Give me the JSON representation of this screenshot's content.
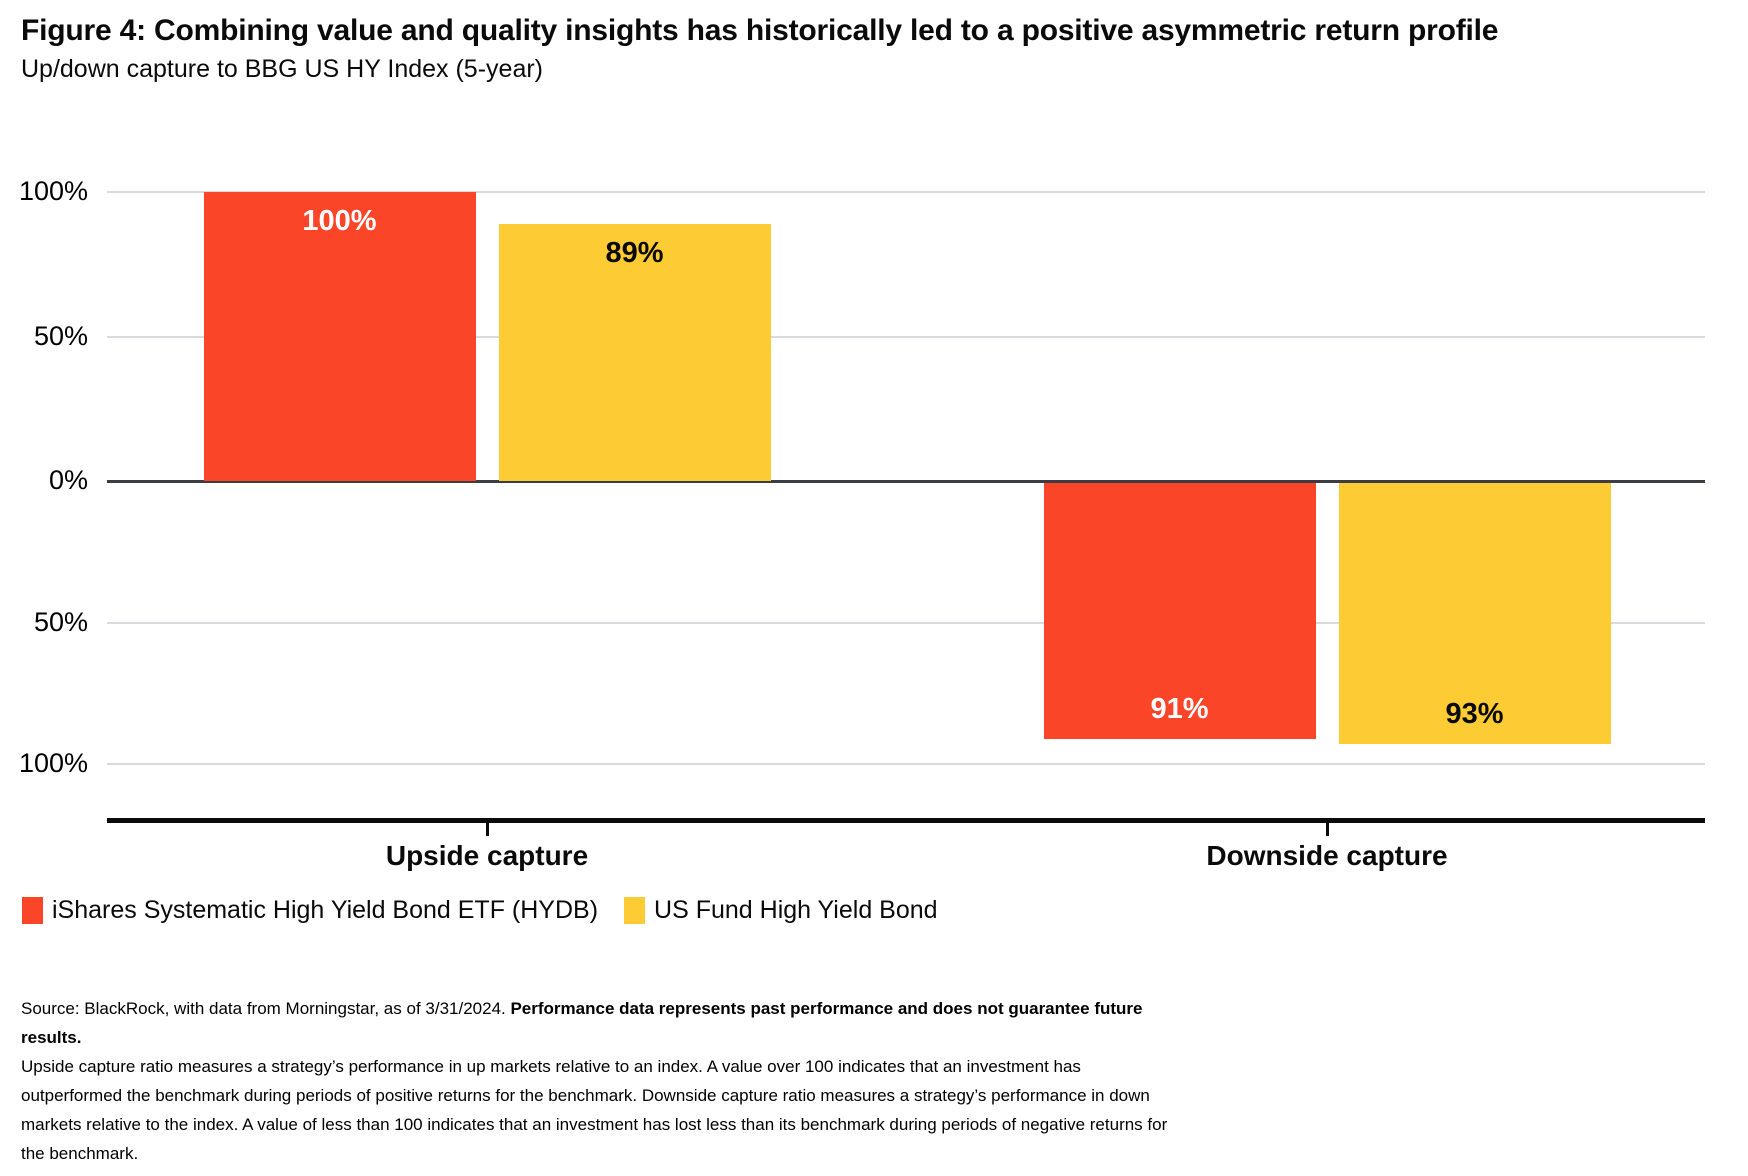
{
  "figure": {
    "title": "Figure 4: Combining value and quality insights has historically led to a positive asymmetric return profile",
    "subtitle": "Up/down capture to BBG US HY Index (5-year)"
  },
  "chart_data": {
    "type": "bar",
    "orientation": "vertical-mirrored",
    "categories": [
      "Upside capture",
      "Downside capture"
    ],
    "series": [
      {
        "name": "iShares Systematic High Yield Bond ETF (HYDB)",
        "color": "#FA4529",
        "label_color": "#ffffff",
        "values": [
          100,
          -91
        ],
        "labels": [
          "100%",
          "91%"
        ]
      },
      {
        "name": "US Fund High Yield Bond",
        "color": "#FDCB33",
        "label_color": "#0a0a0a",
        "values": [
          89,
          -93
        ],
        "labels": [
          "89%",
          "93%"
        ]
      }
    ],
    "y_axis": {
      "range": [
        -100,
        100
      ],
      "ticks": [
        {
          "label": "100%",
          "value": 100
        },
        {
          "label": "50%",
          "value": 50
        },
        {
          "label": "0%",
          "value": 0
        },
        {
          "label": "50%",
          "value": -50
        },
        {
          "label": "100%",
          "value": -100
        }
      ],
      "gridline_color": "#D9D9DE",
      "zero_line_color": "#3C3C43",
      "axis_color": "#0A0A0A"
    },
    "grid": true,
    "legend_position": "bottom-left"
  },
  "footnotes": {
    "source": "Source: BlackRock, with data from Morningstar, as of 3/31/2024. ",
    "disclaimer_bold": "Performance data represents past performance and does not guarantee future results.",
    "definitions": "Upside capture ratio measures a strategy’s performance in up markets relative to an index. A value over 100 indicates that an investment has outperformed the benchmark during periods of positive returns for the benchmark. Downside capture ratio measures a strategy’s performance in down markets relative to the index. A value of less than 100 indicates that an investment has lost less than its benchmark during periods of negative returns for the benchmark."
  }
}
